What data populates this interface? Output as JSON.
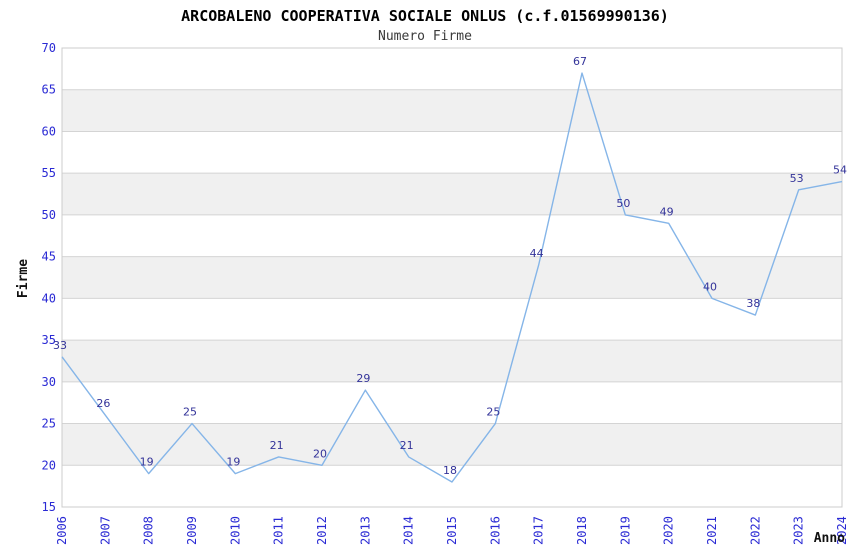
{
  "chart": {
    "title": "ARCOBALENO COOPERATIVA SOCIALE ONLUS (c.f.01569990136)",
    "subtitle": "Numero Firme",
    "xlabel": "Anno",
    "ylabel": "Firme"
  },
  "chart_data": {
    "type": "line",
    "title": "ARCOBALENO COOPERATIVA SOCIALE ONLUS (c.f.01569990136)",
    "subtitle": "Numero Firme",
    "xlabel": "Anno",
    "ylabel": "Firme",
    "categories": [
      "2006",
      "2007",
      "2008",
      "2009",
      "2010",
      "2011",
      "2012",
      "2013",
      "2014",
      "2015",
      "2016",
      "2017",
      "2018",
      "2019",
      "2020",
      "2021",
      "2022",
      "2023",
      "2024"
    ],
    "values": [
      33,
      26,
      19,
      25,
      19,
      21,
      20,
      29,
      21,
      18,
      25,
      44,
      67,
      50,
      49,
      40,
      38,
      53,
      54
    ],
    "ylim": [
      15,
      70
    ],
    "ytick_step": 5,
    "grid": "horizontal-only",
    "legend": "none",
    "alternating_bands": true,
    "point_labels_shown": true,
    "colors": {
      "line": "#85b5e8",
      "point_label": "#333399",
      "tick_label": "#2a2ad4",
      "band": "#f0f0f0",
      "gridline": "#d4d4d4",
      "plot_border": "#cccccc",
      "title": "#000000",
      "subtitle": "#3a3a3a",
      "axis_title": "#111111",
      "background": "#ffffff"
    }
  }
}
